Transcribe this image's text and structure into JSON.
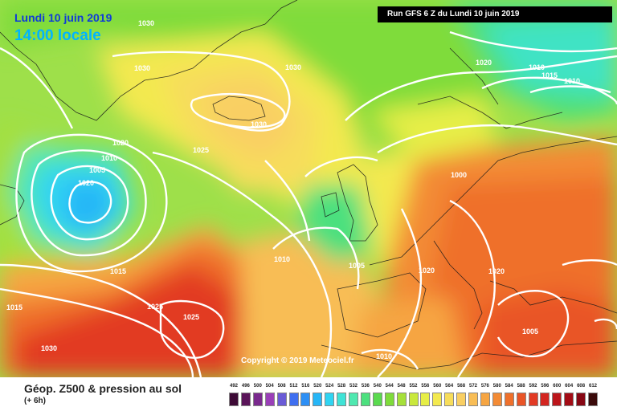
{
  "header": {
    "date": "Lundi 10 juin 2019",
    "time": "14:00 locale",
    "run": "Run GFS 6 Z du Lundi 10 juin 2019"
  },
  "copyright": "Copyright © 2019 Meteociel.fr",
  "footer": {
    "title": "Géop. Z500 & pression au sol",
    "step": "(+ 6h)"
  },
  "isobar_labels": [
    "1030",
    "1030",
    "1030",
    "1030",
    "1020",
    "1015",
    "1010",
    "1005",
    "1020",
    "1025",
    "1010",
    "1005",
    "1000",
    "1020",
    "1020",
    "1015",
    "1025",
    "1025",
    "1030",
    "1020",
    "1010",
    "1015",
    "1010",
    "1005",
    "1010"
  ],
  "scale": {
    "values": [
      "492",
      "496",
      "500",
      "504",
      "508",
      "512",
      "516",
      "520",
      "524",
      "528",
      "532",
      "536",
      "540",
      "544",
      "548",
      "552",
      "556",
      "560",
      "564",
      "568",
      "572",
      "576",
      "580",
      "584",
      "588",
      "592",
      "596",
      "600",
      "604",
      "608",
      "612"
    ],
    "colors": [
      "#3d0a36",
      "#5a1459",
      "#7a2a8e",
      "#9a3fb8",
      "#6a5bd6",
      "#3f6ff0",
      "#2d8ff5",
      "#26b6f7",
      "#30d4f2",
      "#3fe3d6",
      "#4fe8b0",
      "#4ce07e",
      "#5ada4f",
      "#7fdc3b",
      "#a6e03a",
      "#c9e83c",
      "#e6ee46",
      "#f3e94f",
      "#f7dd5b",
      "#f9cf63",
      "#f8bd55",
      "#f6a542",
      "#f38b35",
      "#ef702b",
      "#e95427",
      "#e23a24",
      "#d32520",
      "#bc161b",
      "#a30c16",
      "#870714",
      "#3a0a0a"
    ]
  }
}
